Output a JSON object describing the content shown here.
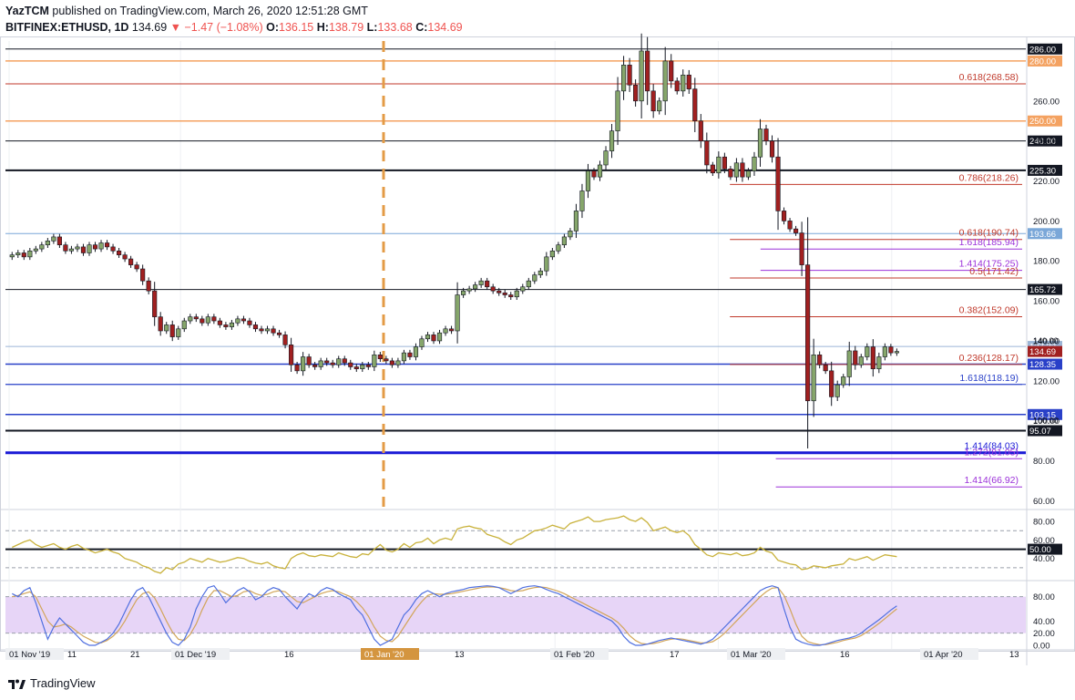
{
  "header": {
    "author": "YazTCM",
    "published": "published on TradingView.com, March 26, 2020 12:51:28 GMT",
    "symbol": "BITFINEX:ETHUSD, 1D",
    "price": "134.69",
    "change": "▼ −1.47 (−1.08%)",
    "o_label": "O:",
    "o_val": "136.15",
    "h_label": "H:",
    "h_val": "138.79",
    "l_label": "L:",
    "l_val": "133.68",
    "c_label": "C:",
    "c_val": "134.69"
  },
  "footer": {
    "brand": "TradingView"
  },
  "colors": {
    "up": "#86a66b",
    "down": "#a12020",
    "blue": "#2940c8",
    "orange": "#f4a261",
    "purple": "#9b30d9",
    "red_fib": "#c0392b",
    "rsi": "#c9b23c",
    "stoch_k": "#4f6fe0",
    "stoch_d": "#d2a55a",
    "stoch_band": "#e7d5f7",
    "vline": "#e39b46"
  },
  "chart_data": [
    {
      "type": "candlestick",
      "title": "BITFINEX:ETHUSD, 1D",
      "y_ticks": [
        60,
        80,
        100,
        120,
        140,
        160,
        180,
        200,
        220,
        240,
        260
      ],
      "ylim": [
        57,
        290
      ],
      "x_labels": [
        "01 Nov '19",
        "11",
        "21",
        "01 Dec '19",
        "16",
        "01 Jan '20",
        "13",
        "01 Feb '20",
        "17",
        "01 Mar '20",
        "16",
        "01 Apr '20",
        "13"
      ],
      "ohlc_close": [
        183,
        184,
        182,
        185,
        186,
        188,
        190,
        192,
        188,
        185,
        186,
        187,
        184,
        188,
        186,
        189,
        187,
        185,
        183,
        181,
        178,
        176,
        170,
        165,
        152,
        145,
        148,
        142,
        146,
        150,
        152,
        151,
        149,
        152,
        150,
        148,
        147,
        149,
        151,
        150,
        148,
        146,
        145,
        146,
        144,
        143,
        138,
        128,
        125,
        132,
        128,
        127,
        130,
        129,
        128,
        131,
        129,
        127,
        126,
        128,
        127,
        133,
        131,
        130,
        128,
        130,
        134,
        132,
        137,
        141,
        143,
        140,
        144,
        146,
        145,
        163,
        165,
        166,
        168,
        170,
        167,
        165,
        164,
        163,
        162,
        165,
        167,
        170,
        173,
        175,
        182,
        185,
        188,
        192,
        195,
        205,
        215,
        225,
        222,
        228,
        235,
        245,
        265,
        278,
        268,
        260,
        285,
        265,
        255,
        260,
        280,
        270,
        265,
        273,
        266,
        250,
        240,
        228,
        224,
        232,
        226,
        222,
        229,
        222,
        225,
        232,
        246,
        240,
        232,
        205,
        200,
        196,
        194,
        178,
        110,
        133,
        128,
        125,
        112,
        118,
        122,
        135,
        128,
        132,
        137,
        126,
        132,
        137,
        134,
        134.69
      ],
      "hlines": [
        {
          "value": 286.0,
          "label": "286.00",
          "color": "#131722",
          "width": 1
        },
        {
          "value": 280.0,
          "label": "280.00",
          "color": "#f4a261",
          "width": 1.5
        },
        {
          "value": 268.58,
          "label": "",
          "color": "#c0392b",
          "width": 1
        },
        {
          "value": 250.0,
          "label": "250.00",
          "color": "#f4a261",
          "width": 1.5
        },
        {
          "value": 240.0,
          "label": "240.00",
          "color": "#131722",
          "width": 1
        },
        {
          "value": 225.3,
          "label": "225.30",
          "color": "#131722",
          "width": 2
        },
        {
          "value": 193.66,
          "label": "193.66",
          "color": "#7aa7d8",
          "width": 1
        },
        {
          "value": 165.72,
          "label": "165.72",
          "color": "#131722",
          "width": 1
        },
        {
          "value": 137.22,
          "label": "137.22",
          "color": "#9bb5d6",
          "width": 1
        },
        {
          "value": 128.35,
          "label": "128.35",
          "color": "#2940c8",
          "width": 1.5
        },
        {
          "value": 118.19,
          "label": "",
          "color": "#2940c8",
          "width": 1
        },
        {
          "value": 103.15,
          "label": "103.15",
          "color": "#2940c8",
          "width": 1.5
        },
        {
          "value": 95.07,
          "label": "95.07",
          "color": "#131722",
          "width": 2
        },
        {
          "value": 84.03,
          "label": "",
          "color": "#1a1ad6",
          "width": 3
        }
      ],
      "fib_levels": [
        {
          "value": 268.58,
          "label": "0.618(268.58)",
          "color": "#c0392b",
          "x_from": 0.0
        },
        {
          "value": 218.26,
          "label": "0.786(218.26)",
          "color": "#c0392b",
          "x_from": 0.71
        },
        {
          "value": 190.74,
          "label": "0.618(190.74)",
          "color": "#c0392b",
          "x_from": 0.71
        },
        {
          "value": 185.94,
          "label": "1.618(185.94)",
          "color": "#9b30d9",
          "x_from": 0.74
        },
        {
          "value": 175.25,
          "label": "1.414(175.25)",
          "color": "#9b30d9",
          "x_from": 0.74
        },
        {
          "value": 171.42,
          "label": "0.5(171.42)",
          "color": "#c0392b",
          "x_from": 0.71
        },
        {
          "value": 152.09,
          "label": "0.382(152.09)",
          "color": "#c0392b",
          "x_from": 0.71
        },
        {
          "value": 128.17,
          "label": "0.236(128.17)",
          "color": "#c0392b",
          "x_from": 0.71
        },
        {
          "value": 118.19,
          "label": "1.618(118.19)",
          "color": "#2940c8",
          "x_from": 0.0
        },
        {
          "value": 84.03,
          "label": "1.414(84.03)",
          "color": "#1a1ad6",
          "x_from": 0.0
        },
        {
          "value": 81.05,
          "label": "1.272(81.05)",
          "color": "#9b30d9",
          "x_from": 0.755
        },
        {
          "value": 66.92,
          "label": "1.414(66.92)",
          "color": "#9b30d9",
          "x_from": 0.755
        }
      ],
      "current_price": {
        "value": 134.69,
        "label": "134.69",
        "color": "#a12020"
      },
      "partial_labels": [
        {
          "value": 140.0,
          "label": "140.00"
        },
        {
          "value": 100.0,
          "label": "100.00"
        }
      ]
    },
    {
      "type": "line",
      "name": "RSI",
      "y_ticks": [
        40,
        60,
        80
      ],
      "tick_labels": [
        "40.00",
        "60.00",
        "80.00"
      ],
      "ylim": [
        20,
        90
      ],
      "hline": {
        "value": 50,
        "label": "50.00"
      },
      "dashed": [
        30,
        70
      ],
      "values": [
        52,
        55,
        58,
        60,
        55,
        52,
        54,
        56,
        52,
        50,
        53,
        55,
        51,
        49,
        46,
        48,
        50,
        47,
        45,
        40,
        38,
        36,
        32,
        30,
        26,
        24,
        30,
        28,
        34,
        36,
        40,
        38,
        36,
        40,
        38,
        36,
        37,
        39,
        41,
        40,
        37,
        35,
        34,
        36,
        32,
        30,
        29,
        40,
        44,
        46,
        43,
        42,
        44,
        43,
        42,
        46,
        44,
        42,
        41,
        45,
        44,
        50,
        55,
        49,
        47,
        50,
        56,
        52,
        57,
        58,
        62,
        56,
        60,
        62,
        60,
        72,
        74,
        75,
        73,
        72,
        66,
        64,
        62,
        58,
        55,
        60,
        62,
        66,
        70,
        71,
        73,
        76,
        74,
        72,
        78,
        80,
        82,
        85,
        80,
        80,
        82,
        83,
        84,
        86,
        82,
        80,
        84,
        79,
        70,
        72,
        74,
        70,
        68,
        70,
        65,
        55,
        50,
        44,
        42,
        46,
        45,
        44,
        46,
        43,
        44,
        46,
        52,
        48,
        46,
        38,
        36,
        34,
        33,
        28,
        29,
        32,
        31,
        30,
        32,
        33,
        34,
        40,
        38,
        40,
        42,
        38,
        41,
        44,
        43,
        42
      ]
    },
    {
      "type": "line",
      "name": "Stoch RSI",
      "y_ticks": [
        0,
        20,
        40,
        60,
        80
      ],
      "tick_labels": [
        "0.00",
        "20.00",
        "40.00",
        "",
        "80.00"
      ],
      "ylim": [
        -6,
        102
      ],
      "dashed": [
        20,
        80
      ],
      "k": [
        85,
        80,
        90,
        95,
        70,
        40,
        10,
        30,
        45,
        35,
        25,
        15,
        5,
        0,
        0,
        5,
        10,
        20,
        35,
        55,
        75,
        90,
        95,
        80,
        60,
        40,
        20,
        5,
        0,
        10,
        30,
        60,
        80,
        95,
        98,
        85,
        70,
        80,
        90,
        95,
        88,
        75,
        80,
        90,
        95,
        92,
        80,
        70,
        60,
        75,
        85,
        80,
        90,
        95,
        92,
        85,
        80,
        75,
        60,
        50,
        30,
        10,
        0,
        5,
        10,
        30,
        50,
        60,
        75,
        85,
        90,
        85,
        80,
        85,
        88,
        90,
        92,
        95,
        96,
        97,
        98,
        97,
        95,
        90,
        85,
        90,
        95,
        97,
        98,
        96,
        92,
        88,
        85,
        80,
        75,
        70,
        65,
        60,
        55,
        50,
        45,
        40,
        30,
        15,
        5,
        0,
        0,
        2,
        5,
        8,
        10,
        12,
        10,
        8,
        6,
        4,
        2,
        5,
        10,
        20,
        30,
        40,
        50,
        60,
        70,
        80,
        90,
        95,
        98,
        95,
        60,
        30,
        10,
        5,
        2,
        0,
        0,
        2,
        5,
        8,
        10,
        12,
        15,
        20,
        28,
        35,
        42,
        50,
        58,
        65
      ],
      "d": [
        80,
        82,
        85,
        88,
        80,
        60,
        40,
        30,
        32,
        35,
        30,
        22,
        15,
        10,
        5,
        4,
        8,
        15,
        25,
        40,
        58,
        75,
        85,
        88,
        78,
        60,
        40,
        22,
        10,
        8,
        18,
        35,
        58,
        78,
        90,
        90,
        85,
        80,
        82,
        88,
        90,
        85,
        82,
        84,
        88,
        90,
        88,
        80,
        72,
        70,
        75,
        80,
        85,
        88,
        90,
        88,
        84,
        80,
        72,
        62,
        48,
        30,
        15,
        8,
        6,
        15,
        30,
        45,
        60,
        72,
        82,
        85,
        84,
        84,
        85,
        87,
        89,
        91,
        93,
        95,
        96,
        96,
        95,
        93,
        90,
        89,
        90,
        93,
        95,
        96,
        95,
        92,
        89,
        85,
        80,
        75,
        70,
        65,
        60,
        55,
        50,
        45,
        38,
        28,
        16,
        8,
        3,
        2,
        3,
        5,
        8,
        10,
        11,
        10,
        8,
        6,
        4,
        4,
        6,
        12,
        20,
        30,
        40,
        50,
        60,
        70,
        80,
        88,
        94,
        95,
        82,
        60,
        35,
        15,
        6,
        3,
        1,
        1,
        3,
        5,
        8,
        10,
        12,
        16,
        22,
        29,
        36,
        44,
        52,
        60
      ]
    }
  ]
}
